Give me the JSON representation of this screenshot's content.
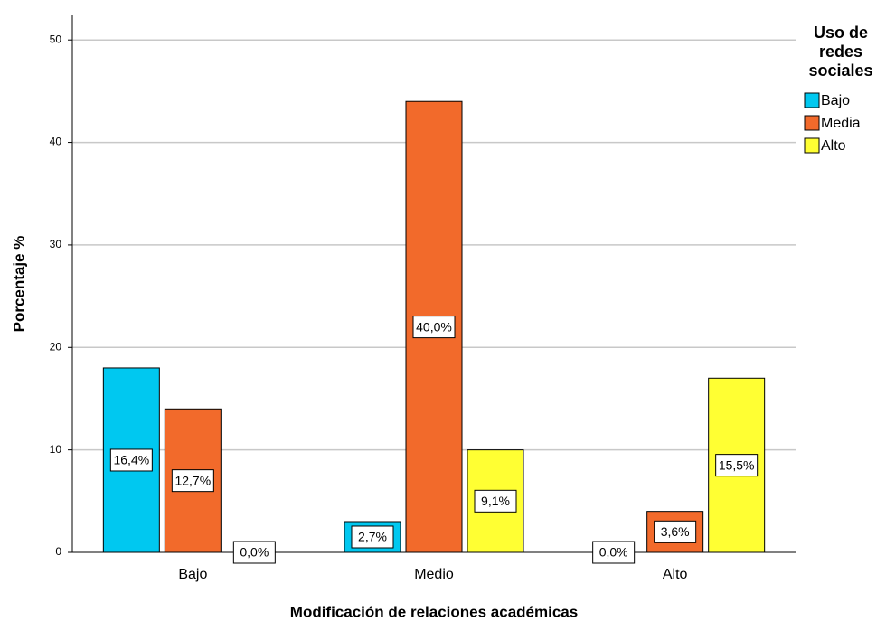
{
  "chart_data": {
    "type": "bar",
    "x_label": "Modificación de relaciones académicas",
    "y_label": "Porcentaje %",
    "legend_title": "Uso de redes sociales",
    "categories": [
      "Bajo",
      "Medio",
      "Alto"
    ],
    "series": [
      {
        "name": "Bajo",
        "color": "#00c8f0",
        "values": [
          18,
          3,
          0
        ],
        "percentages": [
          16.4,
          2.7,
          0.0
        ],
        "percentage_labels": [
          "16,4%",
          "2,7%",
          "0,0%"
        ]
      },
      {
        "name": "Media",
        "color": "#f26a2b",
        "values": [
          14,
          44,
          4
        ],
        "percentages": [
          12.7,
          40.0,
          3.6
        ],
        "percentage_labels": [
          "12,7%",
          "40,0%",
          "3,6%"
        ]
      },
      {
        "name": "Alto",
        "color": "#ffff33",
        "values": [
          0,
          10,
          17
        ],
        "percentages": [
          0.0,
          9.1,
          15.5
        ],
        "percentage_labels": [
          "0,0%",
          "9,1%",
          "15,5%"
        ]
      }
    ],
    "ylim": [
      0,
      52.4
    ],
    "yticks": [
      0,
      10,
      20,
      30,
      40,
      50
    ],
    "grid": true,
    "legend": "right"
  }
}
